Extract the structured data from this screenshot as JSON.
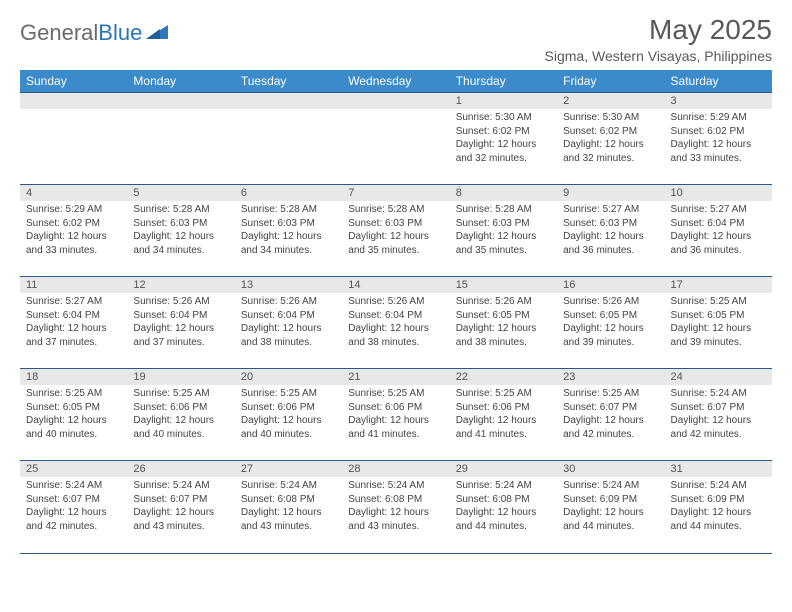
{
  "logo": {
    "text1": "General",
    "text2": "Blue"
  },
  "title": "May 2025",
  "location": "Sigma, Western Visayas, Philippines",
  "colors": {
    "header_bg": "#3b8bca",
    "header_text": "#ffffff",
    "grid_border": "#2a5a8a",
    "daynum_bg": "#e8e8e8",
    "body_text": "#444444",
    "title_text": "#595959"
  },
  "dayHeaders": [
    "Sunday",
    "Monday",
    "Tuesday",
    "Wednesday",
    "Thursday",
    "Friday",
    "Saturday"
  ],
  "weeks": [
    [
      {
        "n": "",
        "lines": []
      },
      {
        "n": "",
        "lines": []
      },
      {
        "n": "",
        "lines": []
      },
      {
        "n": "",
        "lines": []
      },
      {
        "n": "1",
        "lines": [
          "Sunrise: 5:30 AM",
          "Sunset: 6:02 PM",
          "Daylight: 12 hours",
          "and 32 minutes."
        ]
      },
      {
        "n": "2",
        "lines": [
          "Sunrise: 5:30 AM",
          "Sunset: 6:02 PM",
          "Daylight: 12 hours",
          "and 32 minutes."
        ]
      },
      {
        "n": "3",
        "lines": [
          "Sunrise: 5:29 AM",
          "Sunset: 6:02 PM",
          "Daylight: 12 hours",
          "and 33 minutes."
        ]
      }
    ],
    [
      {
        "n": "4",
        "lines": [
          "Sunrise: 5:29 AM",
          "Sunset: 6:02 PM",
          "Daylight: 12 hours",
          "and 33 minutes."
        ]
      },
      {
        "n": "5",
        "lines": [
          "Sunrise: 5:28 AM",
          "Sunset: 6:03 PM",
          "Daylight: 12 hours",
          "and 34 minutes."
        ]
      },
      {
        "n": "6",
        "lines": [
          "Sunrise: 5:28 AM",
          "Sunset: 6:03 PM",
          "Daylight: 12 hours",
          "and 34 minutes."
        ]
      },
      {
        "n": "7",
        "lines": [
          "Sunrise: 5:28 AM",
          "Sunset: 6:03 PM",
          "Daylight: 12 hours",
          "and 35 minutes."
        ]
      },
      {
        "n": "8",
        "lines": [
          "Sunrise: 5:28 AM",
          "Sunset: 6:03 PM",
          "Daylight: 12 hours",
          "and 35 minutes."
        ]
      },
      {
        "n": "9",
        "lines": [
          "Sunrise: 5:27 AM",
          "Sunset: 6:03 PM",
          "Daylight: 12 hours",
          "and 36 minutes."
        ]
      },
      {
        "n": "10",
        "lines": [
          "Sunrise: 5:27 AM",
          "Sunset: 6:04 PM",
          "Daylight: 12 hours",
          "and 36 minutes."
        ]
      }
    ],
    [
      {
        "n": "11",
        "lines": [
          "Sunrise: 5:27 AM",
          "Sunset: 6:04 PM",
          "Daylight: 12 hours",
          "and 37 minutes."
        ]
      },
      {
        "n": "12",
        "lines": [
          "Sunrise: 5:26 AM",
          "Sunset: 6:04 PM",
          "Daylight: 12 hours",
          "and 37 minutes."
        ]
      },
      {
        "n": "13",
        "lines": [
          "Sunrise: 5:26 AM",
          "Sunset: 6:04 PM",
          "Daylight: 12 hours",
          "and 38 minutes."
        ]
      },
      {
        "n": "14",
        "lines": [
          "Sunrise: 5:26 AM",
          "Sunset: 6:04 PM",
          "Daylight: 12 hours",
          "and 38 minutes."
        ]
      },
      {
        "n": "15",
        "lines": [
          "Sunrise: 5:26 AM",
          "Sunset: 6:05 PM",
          "Daylight: 12 hours",
          "and 38 minutes."
        ]
      },
      {
        "n": "16",
        "lines": [
          "Sunrise: 5:26 AM",
          "Sunset: 6:05 PM",
          "Daylight: 12 hours",
          "and 39 minutes."
        ]
      },
      {
        "n": "17",
        "lines": [
          "Sunrise: 5:25 AM",
          "Sunset: 6:05 PM",
          "Daylight: 12 hours",
          "and 39 minutes."
        ]
      }
    ],
    [
      {
        "n": "18",
        "lines": [
          "Sunrise: 5:25 AM",
          "Sunset: 6:05 PM",
          "Daylight: 12 hours",
          "and 40 minutes."
        ]
      },
      {
        "n": "19",
        "lines": [
          "Sunrise: 5:25 AM",
          "Sunset: 6:06 PM",
          "Daylight: 12 hours",
          "and 40 minutes."
        ]
      },
      {
        "n": "20",
        "lines": [
          "Sunrise: 5:25 AM",
          "Sunset: 6:06 PM",
          "Daylight: 12 hours",
          "and 40 minutes."
        ]
      },
      {
        "n": "21",
        "lines": [
          "Sunrise: 5:25 AM",
          "Sunset: 6:06 PM",
          "Daylight: 12 hours",
          "and 41 minutes."
        ]
      },
      {
        "n": "22",
        "lines": [
          "Sunrise: 5:25 AM",
          "Sunset: 6:06 PM",
          "Daylight: 12 hours",
          "and 41 minutes."
        ]
      },
      {
        "n": "23",
        "lines": [
          "Sunrise: 5:25 AM",
          "Sunset: 6:07 PM",
          "Daylight: 12 hours",
          "and 42 minutes."
        ]
      },
      {
        "n": "24",
        "lines": [
          "Sunrise: 5:24 AM",
          "Sunset: 6:07 PM",
          "Daylight: 12 hours",
          "and 42 minutes."
        ]
      }
    ],
    [
      {
        "n": "25",
        "lines": [
          "Sunrise: 5:24 AM",
          "Sunset: 6:07 PM",
          "Daylight: 12 hours",
          "and 42 minutes."
        ]
      },
      {
        "n": "26",
        "lines": [
          "Sunrise: 5:24 AM",
          "Sunset: 6:07 PM",
          "Daylight: 12 hours",
          "and 43 minutes."
        ]
      },
      {
        "n": "27",
        "lines": [
          "Sunrise: 5:24 AM",
          "Sunset: 6:08 PM",
          "Daylight: 12 hours",
          "and 43 minutes."
        ]
      },
      {
        "n": "28",
        "lines": [
          "Sunrise: 5:24 AM",
          "Sunset: 6:08 PM",
          "Daylight: 12 hours",
          "and 43 minutes."
        ]
      },
      {
        "n": "29",
        "lines": [
          "Sunrise: 5:24 AM",
          "Sunset: 6:08 PM",
          "Daylight: 12 hours",
          "and 44 minutes."
        ]
      },
      {
        "n": "30",
        "lines": [
          "Sunrise: 5:24 AM",
          "Sunset: 6:09 PM",
          "Daylight: 12 hours",
          "and 44 minutes."
        ]
      },
      {
        "n": "31",
        "lines": [
          "Sunrise: 5:24 AM",
          "Sunset: 6:09 PM",
          "Daylight: 12 hours",
          "and 44 minutes."
        ]
      }
    ]
  ]
}
